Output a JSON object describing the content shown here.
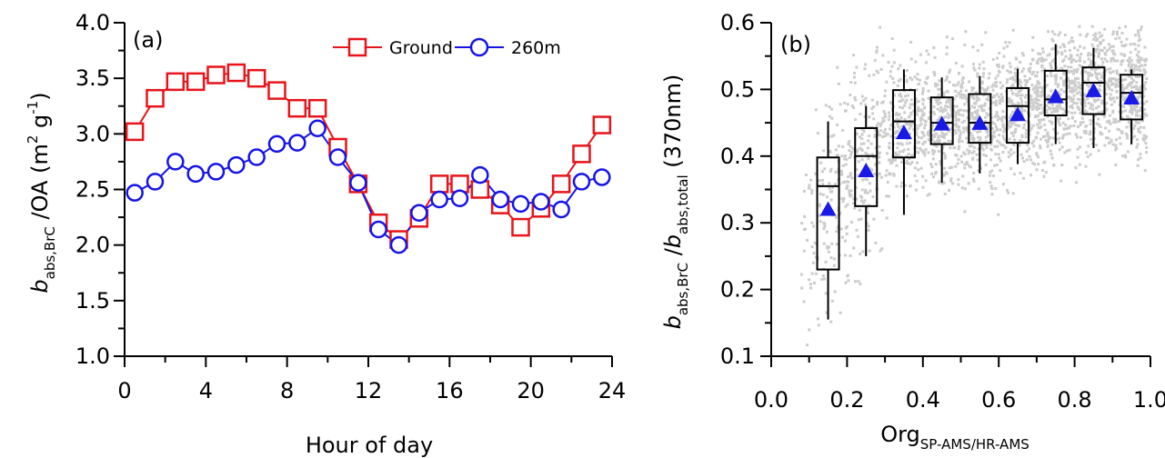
{
  "chart_data": [
    {
      "type": "line",
      "panel_label": "(a)",
      "xlabel": "Hour of day",
      "ylabel": {
        "main": "b",
        "sub": "abs,BrC",
        "ratio": " /OA (m",
        "sup1": "2",
        "mid": " g",
        "sup2": "-1",
        "close": ")"
      },
      "xlim": [
        0,
        24
      ],
      "ylim": [
        1.0,
        4.0
      ],
      "xticks": [
        0,
        4,
        8,
        12,
        16,
        20,
        24
      ],
      "yticks": [
        "1.0",
        "1.5",
        "2.0",
        "2.5",
        "3.0",
        "3.5",
        "4.0"
      ],
      "legend_position": "top-right",
      "x": [
        0.5,
        1.5,
        2.5,
        3.5,
        4.5,
        5.5,
        6.5,
        7.5,
        8.5,
        9.5,
        10.5,
        11.5,
        12.5,
        13.5,
        14.5,
        15.5,
        16.5,
        17.5,
        18.5,
        19.5,
        20.5,
        21.5,
        22.5,
        23.5
      ],
      "series": [
        {
          "name": "Ground",
          "color": "#e8141a",
          "marker": "square",
          "values": [
            3.02,
            3.32,
            3.47,
            3.47,
            3.53,
            3.55,
            3.5,
            3.39,
            3.23,
            3.23,
            2.88,
            2.55,
            2.2,
            2.05,
            2.24,
            2.55,
            2.55,
            2.5,
            2.36,
            2.16,
            2.33,
            2.55,
            2.82,
            3.08
          ]
        },
        {
          "name": "260m",
          "color": "#1414e8",
          "marker": "circle",
          "values": [
            2.47,
            2.57,
            2.75,
            2.64,
            2.66,
            2.72,
            2.79,
            2.91,
            2.92,
            3.05,
            2.79,
            2.56,
            2.14,
            2.0,
            2.29,
            2.41,
            2.42,
            2.63,
            2.41,
            2.37,
            2.39,
            2.32,
            2.57,
            2.61
          ]
        }
      ]
    },
    {
      "type": "box",
      "panel_label": "(b)",
      "xlabel": {
        "main": "Org",
        "sub": "SP-AMS/HR-AMS"
      },
      "ylabel": {
        "main": "b",
        "sub": "abs,BrC",
        "mid": " /",
        "main2": "b",
        "sub2": "abs,total",
        "tail": " (370nm)"
      },
      "xlim": [
        0.0,
        1.0
      ],
      "ylim": [
        0.1,
        0.6
      ],
      "xticks": [
        "0.0",
        "0.2",
        "0.4",
        "0.6",
        "0.8",
        "1.0"
      ],
      "yticks": [
        "0.1",
        "0.2",
        "0.3",
        "0.4",
        "0.5",
        "0.6"
      ],
      "box_color": "#000000",
      "mean_color": "#1a1ae6",
      "scatter_color": "#cccccc",
      "boxes": [
        {
          "x": 0.15,
          "whisker_low": 0.155,
          "q1": 0.23,
          "median": 0.355,
          "q3": 0.398,
          "whisker_high": 0.452,
          "mean": 0.32
        },
        {
          "x": 0.25,
          "whisker_low": 0.25,
          "q1": 0.325,
          "median": 0.4,
          "q3": 0.442,
          "whisker_high": 0.475,
          "mean": 0.378
        },
        {
          "x": 0.35,
          "whisker_low": 0.312,
          "q1": 0.398,
          "median": 0.452,
          "q3": 0.499,
          "whisker_high": 0.53,
          "mean": 0.435
        },
        {
          "x": 0.45,
          "whisker_low": 0.36,
          "q1": 0.418,
          "median": 0.45,
          "q3": 0.488,
          "whisker_high": 0.518,
          "mean": 0.448
        },
        {
          "x": 0.55,
          "whisker_low": 0.374,
          "q1": 0.42,
          "median": 0.45,
          "q3": 0.493,
          "whisker_high": 0.52,
          "mean": 0.449
        },
        {
          "x": 0.65,
          "whisker_low": 0.388,
          "q1": 0.42,
          "median": 0.475,
          "q3": 0.502,
          "whisker_high": 0.531,
          "mean": 0.462
        },
        {
          "x": 0.75,
          "whisker_low": 0.418,
          "q1": 0.461,
          "median": 0.485,
          "q3": 0.528,
          "whisker_high": 0.568,
          "mean": 0.489
        },
        {
          "x": 0.85,
          "whisker_low": 0.412,
          "q1": 0.463,
          "median": 0.51,
          "q3": 0.533,
          "whisker_high": 0.562,
          "mean": 0.498
        },
        {
          "x": 0.95,
          "whisker_low": 0.418,
          "q1": 0.455,
          "median": 0.495,
          "q3": 0.522,
          "whisker_high": 0.53,
          "mean": 0.487
        }
      ]
    }
  ]
}
